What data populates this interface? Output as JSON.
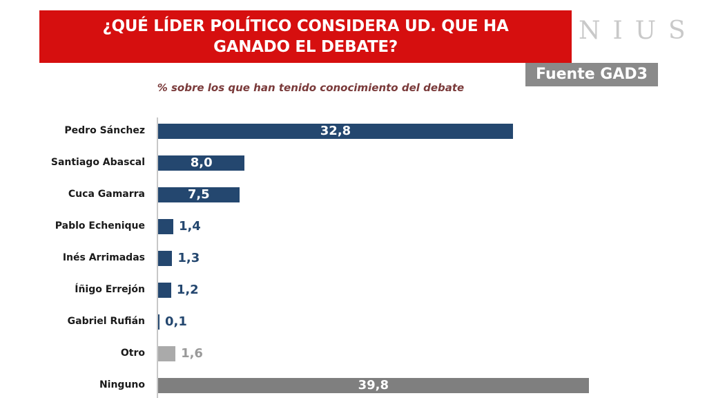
{
  "header": {
    "title": "¿QUÉ LÍDER POLÍTICO CONSIDERA UD. QUE HA GANADO EL DEBATE?",
    "brand": "NIUS",
    "source": "Fuente GAD3"
  },
  "colors": {
    "banner": "#d60f0f",
    "politician_bar": "#24476f",
    "other_bar": "#aaaaaa",
    "none_bar": "#7f7f7f"
  },
  "chart_data": {
    "type": "bar",
    "orientation": "horizontal",
    "title": "¿QUÉ LÍDER POLÍTICO CONSIDERA UD. QUE HA GANADO EL DEBATE?",
    "subtitle": "% sobre los que han tenido conocimiento del debate",
    "categories": [
      "Pedro Sánchez",
      "Santiago Abascal",
      "Cuca Gamarra",
      "Pablo Echenique",
      "Inés Arrimadas",
      "Íñigo Errejón",
      "Gabriel Rufián",
      "Otro",
      "Ninguno"
    ],
    "values": [
      32.8,
      8.0,
      7.5,
      1.4,
      1.3,
      1.2,
      0.1,
      1.6,
      39.8
    ],
    "value_labels": [
      "32,8",
      "8,0",
      "7,5",
      "1,4",
      "1,3",
      "1,2",
      "0,1",
      "1,6",
      "39,8"
    ],
    "groups": [
      "politician",
      "politician",
      "politician",
      "politician",
      "politician",
      "politician",
      "politician",
      "other",
      "none"
    ],
    "xlim": [
      0,
      40
    ],
    "grid": false,
    "legend": "none"
  }
}
